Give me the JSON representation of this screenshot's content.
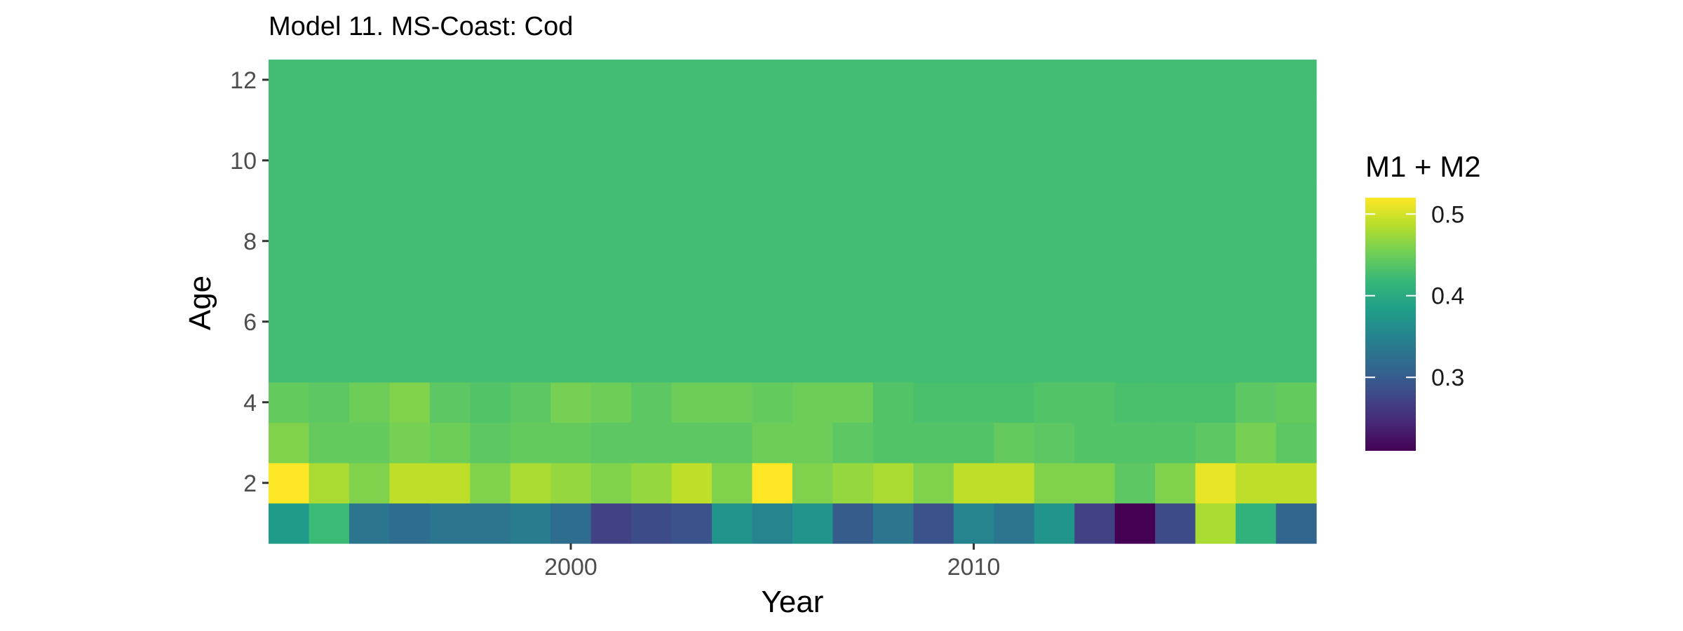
{
  "chart_data": {
    "type": "heatmap",
    "title": "Model 11. MS-Coast: Cod",
    "xlabel": "Year",
    "ylabel": "Age",
    "x_ticks": [
      2000,
      2010
    ],
    "y_ticks": [
      2,
      4,
      6,
      8,
      10,
      12
    ],
    "xlim": [
      1992.5,
      2018.5
    ],
    "ylim": [
      0.5,
      12.5
    ],
    "years": [
      1993,
      1994,
      1995,
      1996,
      1997,
      1998,
      1999,
      2000,
      2001,
      2002,
      2003,
      2004,
      2005,
      2006,
      2007,
      2008,
      2009,
      2010,
      2011,
      2012,
      2013,
      2014,
      2015,
      2016,
      2017,
      2018
    ],
    "ages": [
      1,
      2,
      3,
      4,
      5,
      6,
      7,
      8,
      9,
      10,
      11,
      12
    ],
    "values": [
      [
        0.38,
        0.42,
        0.33,
        0.32,
        0.33,
        0.33,
        0.34,
        0.32,
        0.27,
        0.28,
        0.29,
        0.37,
        0.35,
        0.37,
        0.3,
        0.33,
        0.29,
        0.35,
        0.33,
        0.37,
        0.27,
        0.21,
        0.28,
        0.48,
        0.41,
        0.31
      ],
      [
        0.52,
        0.48,
        0.46,
        0.49,
        0.49,
        0.46,
        0.48,
        0.47,
        0.46,
        0.47,
        0.49,
        0.46,
        0.52,
        0.46,
        0.47,
        0.48,
        0.46,
        0.49,
        0.49,
        0.46,
        0.46,
        0.44,
        0.46,
        0.51,
        0.49,
        0.49
      ],
      [
        0.46,
        0.445,
        0.445,
        0.455,
        0.45,
        0.44,
        0.445,
        0.445,
        0.44,
        0.44,
        0.44,
        0.44,
        0.45,
        0.45,
        0.44,
        0.435,
        0.435,
        0.435,
        0.445,
        0.44,
        0.435,
        0.435,
        0.435,
        0.44,
        0.455,
        0.44
      ],
      [
        0.445,
        0.44,
        0.45,
        0.46,
        0.44,
        0.435,
        0.44,
        0.455,
        0.45,
        0.44,
        0.45,
        0.45,
        0.445,
        0.45,
        0.45,
        0.435,
        0.43,
        0.43,
        0.43,
        0.435,
        0.435,
        0.43,
        0.43,
        0.43,
        0.44,
        0.445
      ],
      [
        0.425,
        0.425,
        0.425,
        0.425,
        0.425,
        0.425,
        0.425,
        0.425,
        0.425,
        0.425,
        0.425,
        0.425,
        0.425,
        0.425,
        0.425,
        0.425,
        0.425,
        0.425,
        0.425,
        0.425,
        0.425,
        0.425,
        0.425,
        0.425,
        0.425,
        0.425
      ],
      [
        0.425,
        0.425,
        0.425,
        0.425,
        0.425,
        0.425,
        0.425,
        0.425,
        0.425,
        0.425,
        0.425,
        0.425,
        0.425,
        0.425,
        0.425,
        0.425,
        0.425,
        0.425,
        0.425,
        0.425,
        0.425,
        0.425,
        0.425,
        0.425,
        0.425,
        0.425
      ],
      [
        0.425,
        0.425,
        0.425,
        0.425,
        0.425,
        0.425,
        0.425,
        0.425,
        0.425,
        0.425,
        0.425,
        0.425,
        0.425,
        0.425,
        0.425,
        0.425,
        0.425,
        0.425,
        0.425,
        0.425,
        0.425,
        0.425,
        0.425,
        0.425,
        0.425,
        0.425
      ],
      [
        0.425,
        0.425,
        0.425,
        0.425,
        0.425,
        0.425,
        0.425,
        0.425,
        0.425,
        0.425,
        0.425,
        0.425,
        0.425,
        0.425,
        0.425,
        0.425,
        0.425,
        0.425,
        0.425,
        0.425,
        0.425,
        0.425,
        0.425,
        0.425,
        0.425,
        0.425
      ],
      [
        0.425,
        0.425,
        0.425,
        0.425,
        0.425,
        0.425,
        0.425,
        0.425,
        0.425,
        0.425,
        0.425,
        0.425,
        0.425,
        0.425,
        0.425,
        0.425,
        0.425,
        0.425,
        0.425,
        0.425,
        0.425,
        0.425,
        0.425,
        0.425,
        0.425,
        0.425
      ],
      [
        0.425,
        0.425,
        0.425,
        0.425,
        0.425,
        0.425,
        0.425,
        0.425,
        0.425,
        0.425,
        0.425,
        0.425,
        0.425,
        0.425,
        0.425,
        0.425,
        0.425,
        0.425,
        0.425,
        0.425,
        0.425,
        0.425,
        0.425,
        0.425,
        0.425,
        0.425
      ],
      [
        0.425,
        0.425,
        0.425,
        0.425,
        0.425,
        0.425,
        0.425,
        0.425,
        0.425,
        0.425,
        0.425,
        0.425,
        0.425,
        0.425,
        0.425,
        0.425,
        0.425,
        0.425,
        0.425,
        0.425,
        0.425,
        0.425,
        0.425,
        0.425,
        0.425,
        0.425
      ],
      [
        0.425,
        0.425,
        0.425,
        0.425,
        0.425,
        0.425,
        0.425,
        0.425,
        0.425,
        0.425,
        0.425,
        0.425,
        0.425,
        0.425,
        0.425,
        0.425,
        0.425,
        0.425,
        0.425,
        0.425,
        0.425,
        0.425,
        0.425,
        0.425,
        0.425,
        0.425
      ]
    ],
    "legend": {
      "title": "M1 + M2",
      "range": [
        0.21,
        0.52
      ],
      "ticks": [
        0.3,
        0.4,
        0.5
      ],
      "tick_labels": [
        "0.3",
        "0.4",
        "0.5"
      ],
      "placement": "right",
      "palette": "viridis"
    },
    "grid": false
  }
}
